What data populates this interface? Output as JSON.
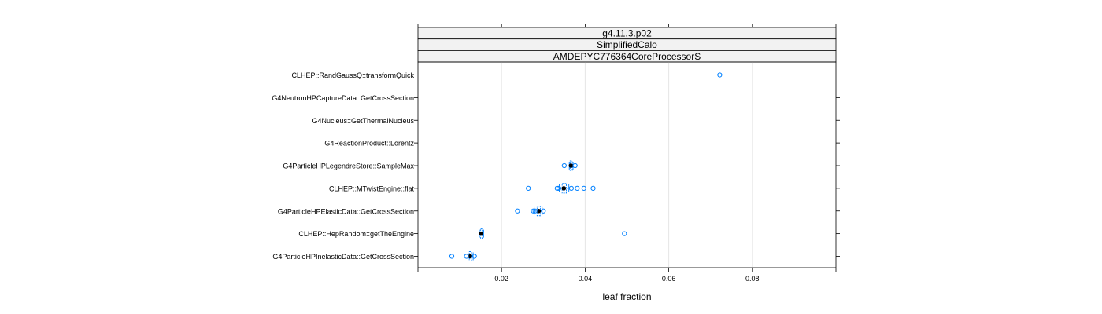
{
  "chart_data": {
    "type": "box",
    "strips": [
      "g4.11.3.p02",
      "SimplifiedCalo",
      "AMDEPYC776364CoreProcessorS"
    ],
    "xlabel": "leaf fraction",
    "ylabel": "",
    "xlim": [
      0.0,
      0.1
    ],
    "xticks": [
      0.02,
      0.04,
      0.06,
      0.08
    ],
    "xtick_labels": [
      "0.02",
      "0.04",
      "0.06",
      "0.08"
    ],
    "grid": "vertical",
    "colors": {
      "box": "#0080ff",
      "median": "#000000",
      "outlier": "#0080ff",
      "grid": "#e6e6e6",
      "strip": "#f2f2f2"
    },
    "categories": [
      "CLHEP::RandGaussQ::transformQuick",
      "G4NeutronHPCaptureData::GetCrossSection",
      "G4Nucleus::GetThermalNucleus",
      "G4ReactionProduct::Lorentz",
      "G4ParticleHPLegendreStore::SampleMax",
      "CLHEP::MTwistEngine::flat",
      "G4ParticleHPElasticData::GetCrossSection",
      "CLHEP::HepRandom::getTheEngine",
      "G4ParticleHPInelasticData::GetCrossSection"
    ],
    "boxes": [
      null,
      null,
      null,
      null,
      {
        "min": 0.0362,
        "q1": 0.0364,
        "median": 0.0366,
        "q3": 0.0369,
        "max": 0.0371
      },
      {
        "min": 0.0338,
        "q1": 0.0345,
        "median": 0.0349,
        "q3": 0.0355,
        "max": 0.0361
      },
      {
        "min": 0.0278,
        "q1": 0.0285,
        "median": 0.0289,
        "q3": 0.0293,
        "max": 0.0297
      },
      {
        "min": 0.0147,
        "q1": 0.015,
        "median": 0.0151,
        "q3": 0.0154,
        "max": 0.0157
      },
      {
        "min": 0.012,
        "q1": 0.0123,
        "median": 0.0125,
        "q3": 0.0128,
        "max": 0.0132
      }
    ],
    "outliers": [
      [
        0.0722
      ],
      [],
      [],
      [],
      [
        0.035,
        0.0376
      ],
      [
        0.0264,
        0.0333,
        0.0337,
        0.0367,
        0.0381,
        0.0397,
        0.0419
      ],
      [
        0.0238,
        0.0276,
        0.028,
        0.03
      ],
      [
        0.0494
      ],
      [
        0.0081,
        0.0116,
        0.0135
      ]
    ]
  }
}
